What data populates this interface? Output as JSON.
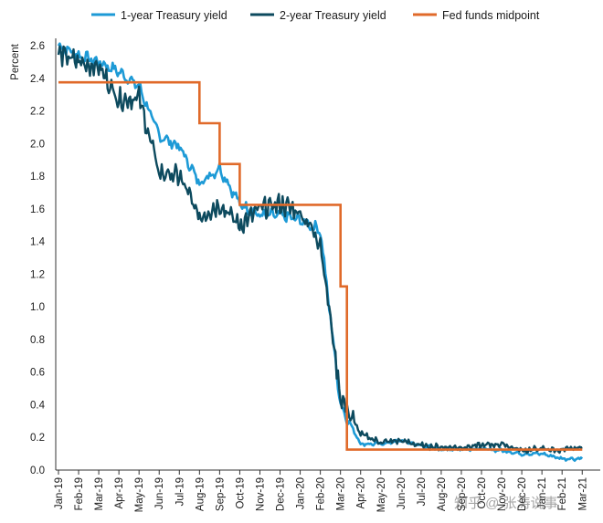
{
  "chart_data": {
    "type": "line",
    "title": "",
    "xlabel": "",
    "ylabel": "Percent",
    "ylim": [
      0.0,
      2.6
    ],
    "yticks": [
      "0.0",
      "0.2",
      "0.4",
      "0.6",
      "0.8",
      "1.0",
      "1.2",
      "1.4",
      "1.6",
      "1.8",
      "2.0",
      "2.2",
      "2.4",
      "2.6"
    ],
    "xticks": [
      "Jan-19",
      "Feb-19",
      "Mar-19",
      "Apr-19",
      "May-19",
      "Jun-19",
      "Jul-19",
      "Aug-19",
      "Sep-19",
      "Oct-19",
      "Nov-19",
      "Dec-19",
      "Jan-20",
      "Feb-20",
      "Mar-20",
      "Apr-20",
      "May-20",
      "Jun-20",
      "Jul-20",
      "Aug-20",
      "Sep-20",
      "Oct-20",
      "Nov-20",
      "Dec-20",
      "Jan-21",
      "Feb-21",
      "Mar-21"
    ],
    "grid": false,
    "legend_position": "top",
    "series": [
      {
        "name": "1-year Treasury yield",
        "color": "#1d9ad6",
        "x": [
          "Jan-19",
          "Feb-19",
          "Mar-19",
          "Apr-19",
          "May-19",
          "Jun-19",
          "Jul-19",
          "Aug-19",
          "Sep-19",
          "Oct-19",
          "Nov-19",
          "Dec-19",
          "Jan-20",
          "Feb-20",
          "Mar-20",
          "Apr-20",
          "May-20",
          "Jun-20",
          "Jul-20",
          "Aug-20",
          "Sep-20",
          "Oct-20",
          "Nov-20",
          "Dec-20",
          "Jan-21",
          "Feb-21",
          "Mar-21"
        ],
        "values": [
          2.6,
          2.54,
          2.5,
          2.44,
          2.35,
          2.05,
          1.98,
          1.76,
          1.85,
          1.63,
          1.56,
          1.56,
          1.53,
          1.47,
          0.4,
          0.16,
          0.16,
          0.18,
          0.15,
          0.13,
          0.13,
          0.13,
          0.12,
          0.1,
          0.1,
          0.07,
          0.07
        ]
      },
      {
        "name": "2-year Treasury yield",
        "color": "#0d4a5e",
        "x": [
          "Jan-19",
          "Feb-19",
          "Mar-19",
          "Apr-19",
          "May-19",
          "Jun-19",
          "Jul-19",
          "Aug-19",
          "Sep-19",
          "Oct-19",
          "Nov-19",
          "Dec-19",
          "Jan-20",
          "Feb-20",
          "Mar-20",
          "Apr-20",
          "May-20",
          "Jun-20",
          "Jul-20",
          "Aug-20",
          "Sep-20",
          "Oct-20",
          "Nov-20",
          "Dec-20",
          "Jan-21",
          "Feb-21",
          "Mar-21"
        ],
        "values": [
          2.55,
          2.5,
          2.47,
          2.27,
          2.28,
          1.82,
          1.8,
          1.55,
          1.63,
          1.5,
          1.6,
          1.63,
          1.58,
          1.4,
          0.45,
          0.22,
          0.17,
          0.18,
          0.15,
          0.14,
          0.14,
          0.15,
          0.16,
          0.12,
          0.13,
          0.12,
          0.14
        ]
      },
      {
        "name": "Fed funds midpoint",
        "color": "#e06a2a",
        "x": [
          "Jan-19",
          "Aug-19",
          "Aug-19",
          "Sep-19",
          "Sep-19",
          "Oct-19",
          "Oct-19",
          "Mar-20",
          "Mar-20",
          "Mar-20",
          "Mar-20",
          "Mar-21"
        ],
        "values": [
          2.375,
          2.375,
          2.125,
          2.125,
          1.875,
          1.875,
          1.625,
          1.625,
          1.125,
          1.125,
          0.125,
          0.125
        ]
      }
    ],
    "watermark": "知乎 @ 张涛说事"
  }
}
